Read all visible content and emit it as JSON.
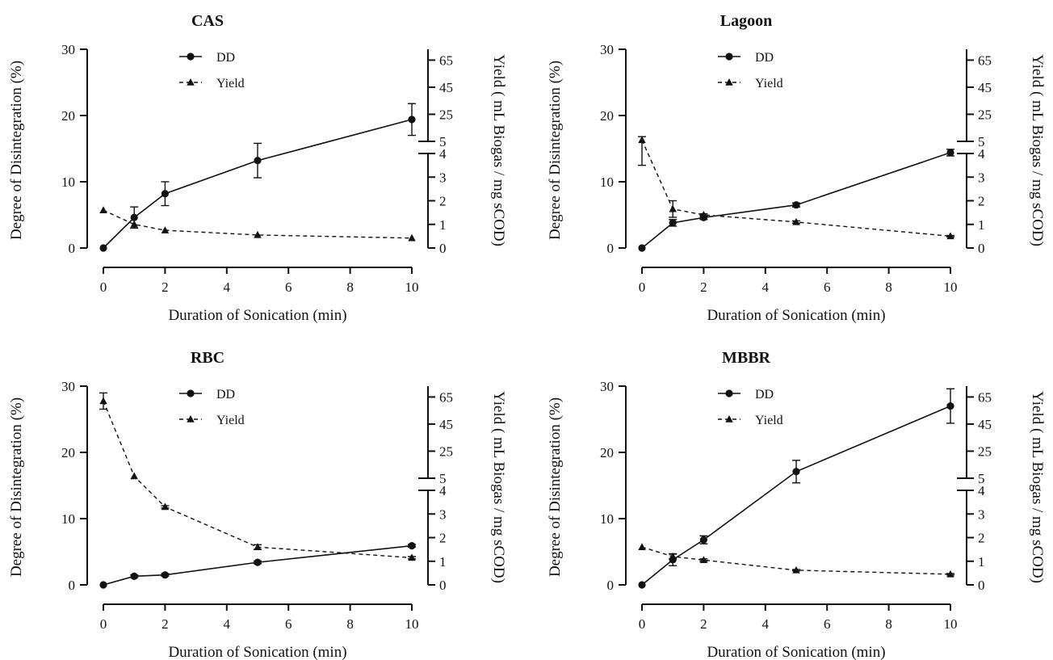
{
  "chart_data": [
    {
      "type": "line",
      "title": "CAS",
      "xlabel": "Duration of Sonication (min)",
      "ylabel_left": "Degree of Disintegration (%)",
      "ylabel_right": "Yield ( mL Biogas / mg sCOD)",
      "x": [
        0,
        1,
        2,
        5,
        10
      ],
      "x_ticks": [
        "0",
        "2",
        "4",
        "6",
        "8",
        "10"
      ],
      "xlim": [
        0,
        10
      ],
      "y_left_ticks": [
        "0",
        "10",
        "20",
        "30"
      ],
      "ylim_left": [
        0,
        30
      ],
      "y_right_lower_ticks": [
        "0",
        "1",
        "2",
        "3",
        "4"
      ],
      "y_right_upper_ticks": [
        "5",
        "25",
        "45",
        "65"
      ],
      "right_axis_broken": true,
      "legend_position": "top-center",
      "series": [
        {
          "name": "DD",
          "axis": "left",
          "values": [
            0,
            4.6,
            8.2,
            13.2,
            19.4
          ],
          "errors": [
            0,
            1.6,
            1.8,
            2.6,
            2.4
          ]
        },
        {
          "name": "Yield",
          "axis": "right",
          "values": [
            1.6,
            1.0,
            0.75,
            0.55,
            0.42
          ],
          "errors": [
            0,
            0,
            0,
            0,
            0
          ]
        }
      ]
    },
    {
      "type": "line",
      "title": "Lagoon",
      "xlabel": "Duration of Sonication (min)",
      "ylabel_left": "Degree of Disintegration (%)",
      "ylabel_right": "Yield ( mL Biogas / mg sCOD)",
      "x": [
        0,
        1,
        2,
        5,
        10
      ],
      "x_ticks": [
        "0",
        "2",
        "4",
        "6",
        "8",
        "10"
      ],
      "xlim": [
        0,
        10
      ],
      "y_left_ticks": [
        "0",
        "10",
        "20",
        "30"
      ],
      "ylim_left": [
        0,
        30
      ],
      "y_right_lower_ticks": [
        "0",
        "1",
        "2",
        "3",
        "4"
      ],
      "y_right_upper_ticks": [
        "5",
        "25",
        "45",
        "65"
      ],
      "right_axis_broken": true,
      "legend_position": "top-center",
      "series": [
        {
          "name": "DD",
          "axis": "left",
          "values": [
            0,
            3.8,
            4.6,
            6.5,
            14.4
          ],
          "errors": [
            0,
            0.5,
            0.3,
            0.3,
            0.5
          ]
        },
        {
          "name": "Yield",
          "axis": "right",
          "values": [
            6.0,
            1.65,
            1.4,
            1.1,
            0.5
          ],
          "errors": [
            2.5,
            0.35,
            0.05,
            0.05,
            0.03
          ]
        }
      ]
    },
    {
      "type": "line",
      "title": "RBC",
      "xlabel": "Duration of Sonication (min)",
      "ylabel_left": "Degree of Disintegration (%)",
      "ylabel_right": "Yield ( mL Biogas / mg sCOD)",
      "x": [
        0,
        1,
        2,
        5,
        10
      ],
      "x_ticks": [
        "0",
        "2",
        "4",
        "6",
        "8",
        "10"
      ],
      "xlim": [
        0,
        10
      ],
      "y_left_ticks": [
        "0",
        "10",
        "20",
        "30"
      ],
      "ylim_left": [
        0,
        30
      ],
      "y_right_lower_ticks": [
        "0",
        "1",
        "2",
        "3",
        "4"
      ],
      "y_right_upper_ticks": [
        "5",
        "25",
        "45",
        "65"
      ],
      "right_axis_broken": true,
      "legend_position": "top-center",
      "series": [
        {
          "name": "DD",
          "axis": "left",
          "values": [
            0,
            1.3,
            1.5,
            3.4,
            5.9
          ],
          "errors": [
            0,
            0.2,
            0.2,
            0.2,
            0.2
          ]
        },
        {
          "name": "Yield",
          "axis": "right",
          "values": [
            62,
            6.5,
            3.3,
            1.6,
            1.15
          ],
          "errors": [
            6,
            0,
            0.05,
            0.1,
            0.05
          ]
        }
      ]
    },
    {
      "type": "line",
      "title": "MBBR",
      "xlabel": "Duration of Sonication (min)",
      "ylabel_left": "Degree of Disintegration (%)",
      "ylabel_right": "Yield ( mL Biogas / mg sCOD)",
      "x": [
        0,
        1,
        2,
        5,
        10
      ],
      "x_ticks": [
        "0",
        "2",
        "4",
        "6",
        "8",
        "10"
      ],
      "xlim": [
        0,
        10
      ],
      "y_left_ticks": [
        "0",
        "10",
        "20",
        "30"
      ],
      "ylim_left": [
        0,
        30
      ],
      "y_right_lower_ticks": [
        "0",
        "1",
        "2",
        "3",
        "4"
      ],
      "y_right_upper_ticks": [
        "5",
        "25",
        "45",
        "65"
      ],
      "right_axis_broken": true,
      "legend_position": "top-center",
      "series": [
        {
          "name": "DD",
          "axis": "left",
          "values": [
            0,
            3.8,
            6.8,
            17.1,
            27.0
          ],
          "errors": [
            0,
            0.9,
            0.6,
            1.7,
            2.6
          ]
        },
        {
          "name": "Yield",
          "axis": "right",
          "values": [
            1.6,
            1.2,
            1.05,
            0.62,
            0.45
          ],
          "errors": [
            0,
            0.1,
            0.05,
            0.03,
            0.03
          ]
        }
      ]
    }
  ]
}
